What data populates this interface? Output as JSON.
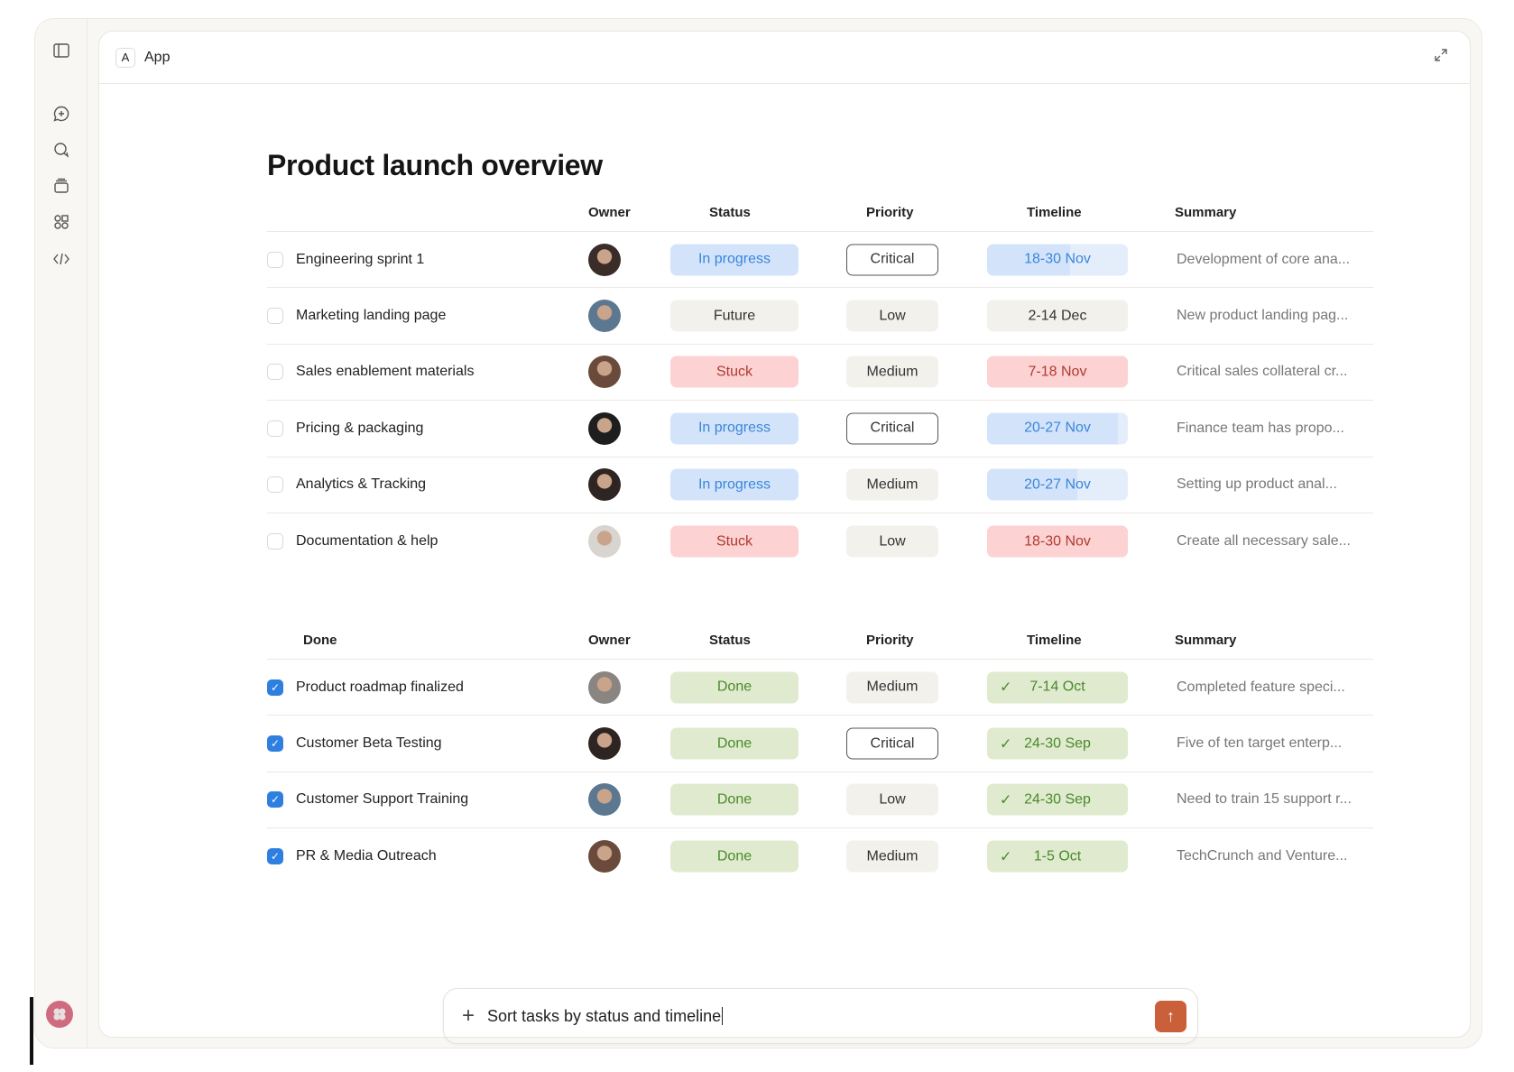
{
  "header": {
    "app_badge": "A",
    "app_title": "App"
  },
  "page_title": "Product launch overview",
  "columns": {
    "owner": "Owner",
    "status": "Status",
    "priority": "Priority",
    "timeline": "Timeline",
    "summary": "Summary"
  },
  "active_tasks": [
    {
      "name": "Engineering sprint 1",
      "checked": false,
      "status": "In progress",
      "status_color": "blue",
      "priority": "Critical",
      "timeline": "18-30 Nov",
      "timeline_color": "blue",
      "timeline_progress": 0.59,
      "summary": "Development of core ana...",
      "avatar": "#3a2c28"
    },
    {
      "name": "Marketing landing page",
      "checked": false,
      "status": "Future",
      "status_color": "grey",
      "priority": "Low",
      "timeline": "2-14 Dec",
      "timeline_color": "grey",
      "timeline_progress": 1,
      "summary": "New product landing pag...",
      "avatar": "#5c7890"
    },
    {
      "name": "Sales enablement materials",
      "checked": false,
      "status": "Stuck",
      "status_color": "red",
      "priority": "Medium",
      "timeline": "7-18 Nov",
      "timeline_color": "red",
      "timeline_progress": 1,
      "summary": "Critical sales collateral cr...",
      "avatar": "#6a4a3a"
    },
    {
      "name": "Pricing & packaging",
      "checked": false,
      "status": "In progress",
      "status_color": "blue",
      "priority": "Critical",
      "timeline": "20-27 Nov",
      "timeline_color": "blue",
      "timeline_progress": 0.93,
      "summary": "Finance team has propo...",
      "avatar": "#1e1e1e"
    },
    {
      "name": "Analytics & Tracking",
      "checked": false,
      "status": "In progress",
      "status_color": "blue",
      "priority": "Medium",
      "timeline": "20-27 Nov",
      "timeline_color": "blue",
      "timeline_progress": 0.64,
      "summary": "Setting up product anal...",
      "avatar": "#2e2522"
    },
    {
      "name": "Documentation & help",
      "checked": false,
      "status": "Stuck",
      "status_color": "red",
      "priority": "Low",
      "timeline": "18-30 Nov",
      "timeline_color": "red",
      "timeline_progress": 1,
      "summary": "Create all necessary sale...",
      "avatar": "#d8d4cf"
    }
  ],
  "done_section": {
    "label": "Done"
  },
  "done_tasks": [
    {
      "name": "Product roadmap finalized",
      "checked": true,
      "status": "Done",
      "priority": "Medium",
      "timeline": "7-14 Oct",
      "summary": "Completed feature speci...",
      "avatar": "#8a8580"
    },
    {
      "name": "Customer Beta Testing",
      "checked": true,
      "status": "Done",
      "priority": "Critical",
      "timeline": "24-30 Sep",
      "summary": "Five of ten target enterp...",
      "avatar": "#2e2522"
    },
    {
      "name": "Customer Support Training",
      "checked": true,
      "status": "Done",
      "priority": "Low",
      "timeline": "24-30 Sep",
      "summary": "Need to train 15 support r...",
      "avatar": "#5c7890"
    },
    {
      "name": "PR & Media Outreach",
      "checked": true,
      "status": "Done",
      "priority": "Medium",
      "timeline": "1-5 Oct",
      "summary": "TechCrunch and Venture...",
      "avatar": "#6a4a3a"
    }
  ],
  "composer": {
    "value": "Sort tasks by status and timeline"
  },
  "colors": {
    "accent_send": "#c9603a",
    "checkbox": "#2f7fe0",
    "user_avatar": "#cf6b7f"
  }
}
